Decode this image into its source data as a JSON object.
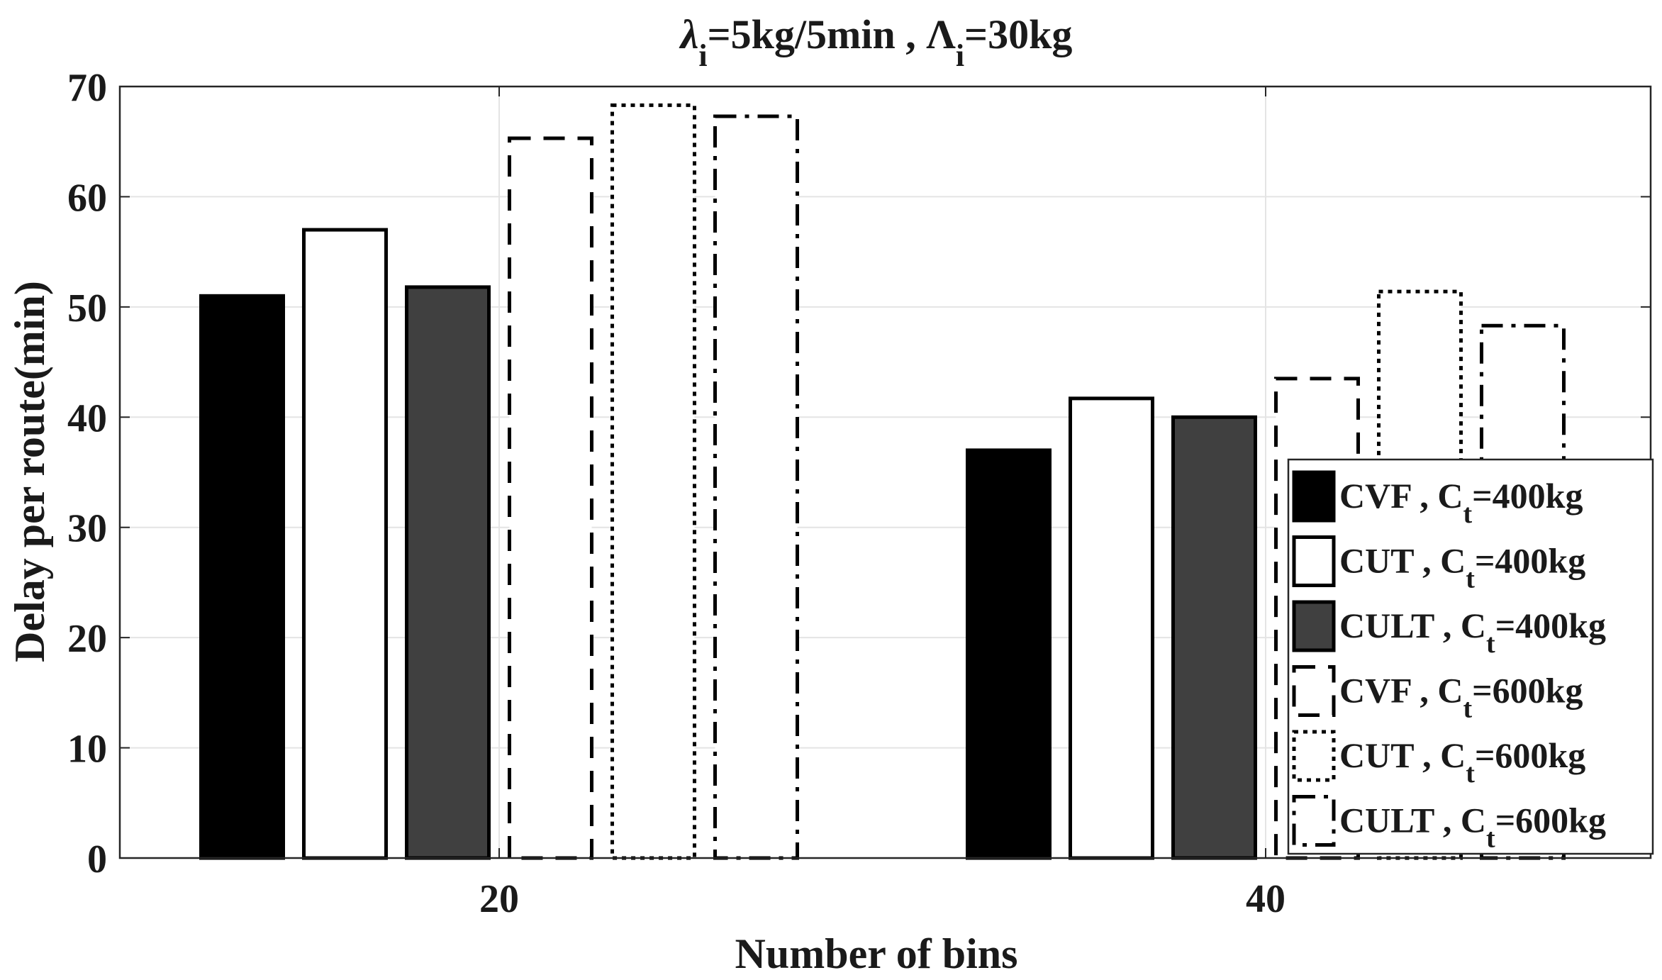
{
  "chart_data": {
    "type": "bar",
    "title": {
      "parts": [
        {
          "text": "λ",
          "style": "italic"
        },
        {
          "text": "i",
          "style": "sub"
        },
        {
          "text": "=5kg/5min , Λ",
          "style": "normal"
        },
        {
          "text": "i",
          "style": "sub"
        },
        {
          "text": "=30kg",
          "style": "normal"
        }
      ]
    },
    "xlabel": "Number of bins",
    "ylabel": "Delay per route(min)",
    "categories": [
      "20",
      "40"
    ],
    "ylim": [
      0,
      70
    ],
    "yticks": [
      0,
      10,
      20,
      30,
      40,
      50,
      60,
      70
    ],
    "grid": true,
    "legend_position": "bottom-right",
    "series": [
      {
        "name": "CVF , C",
        "sub": "t",
        "suffix": "=400kg",
        "style": "solid-black",
        "fill": "#000000",
        "values": [
          51,
          37
        ]
      },
      {
        "name": "CUT , C",
        "sub": "t",
        "suffix": "=400kg",
        "style": "solid-white",
        "fill": "#ffffff",
        "values": [
          57,
          41.7
        ]
      },
      {
        "name": "CULT , C",
        "sub": "t",
        "suffix": "=400kg",
        "style": "solid-gray",
        "fill": "#404040",
        "values": [
          51.8,
          40
        ]
      },
      {
        "name": "CVF , C",
        "sub": "t",
        "suffix": "=600kg",
        "style": "dashed",
        "fill": "#ffffff",
        "values": [
          65.3,
          43.5
        ]
      },
      {
        "name": "CUT , C",
        "sub": "t",
        "suffix": "=600kg",
        "style": "dotted",
        "fill": "#ffffff",
        "values": [
          68.3,
          51.4
        ]
      },
      {
        "name": "CULT , C",
        "sub": "t",
        "suffix": "=600kg",
        "style": "dashdot",
        "fill": "#ffffff",
        "values": [
          67.3,
          48.3
        ]
      }
    ]
  }
}
